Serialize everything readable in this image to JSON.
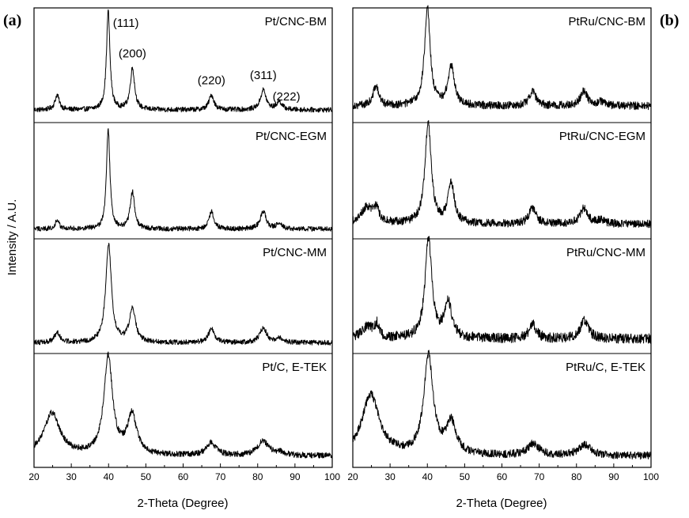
{
  "chart_data": [
    {
      "type": "line",
      "panel_label": "(a)",
      "xlabel": "2-Theta (Degree)",
      "ylabel": "Intensity / A.U.",
      "xlim": [
        20,
        100
      ],
      "xticks": [
        20,
        30,
        40,
        50,
        60,
        70,
        80,
        90,
        100
      ],
      "stacked_series": [
        {
          "name": "Pt/CNC-BM",
          "baseline": 0.08,
          "noise": 0.025,
          "peaks": [
            {
              "x": 26.2,
              "height": 0.15,
              "width": 0.7
            },
            {
              "x": 39.9,
              "height": 1.0,
              "width": 0.55
            },
            {
              "x": 46.4,
              "height": 0.42,
              "width": 0.7
            },
            {
              "x": 67.6,
              "height": 0.15,
              "width": 0.8
            },
            {
              "x": 81.5,
              "height": 0.2,
              "width": 0.9
            },
            {
              "x": 85.8,
              "height": 0.08,
              "width": 0.9
            }
          ],
          "annotations": [
            {
              "text": "(111)",
              "x": 39.9
            },
            {
              "text": "(200)",
              "x": 46.4
            },
            {
              "text": "(220)",
              "x": 67.6
            },
            {
              "text": "(311)",
              "x": 81.5
            },
            {
              "text": "(222)",
              "x": 85.8
            }
          ]
        },
        {
          "name": "Pt/CNC-EGM",
          "baseline": 0.05,
          "noise": 0.025,
          "peaks": [
            {
              "x": 26.2,
              "height": 0.08,
              "width": 0.7
            },
            {
              "x": 39.9,
              "height": 1.0,
              "width": 0.55
            },
            {
              "x": 46.4,
              "height": 0.37,
              "width": 0.7
            },
            {
              "x": 67.6,
              "height": 0.17,
              "width": 0.8
            },
            {
              "x": 81.5,
              "height": 0.18,
              "width": 0.9
            },
            {
              "x": 85.8,
              "height": 0.05,
              "width": 0.9
            }
          ]
        },
        {
          "name": "Pt/CNC-MM",
          "baseline": 0.06,
          "noise": 0.025,
          "peaks": [
            {
              "x": 26.2,
              "height": 0.1,
              "width": 0.9
            },
            {
              "x": 40.0,
              "height": 1.0,
              "width": 0.9
            },
            {
              "x": 46.4,
              "height": 0.34,
              "width": 1.0
            },
            {
              "x": 67.6,
              "height": 0.14,
              "width": 1.0
            },
            {
              "x": 81.5,
              "height": 0.15,
              "width": 1.1
            },
            {
              "x": 85.8,
              "height": 0.04,
              "width": 1.1
            }
          ]
        },
        {
          "name": "Pt/C, E-TEK",
          "baseline": 0.07,
          "noise": 0.03,
          "peaks": [
            {
              "x": 24.8,
              "height": 0.43,
              "width": 2.6
            },
            {
              "x": 39.9,
              "height": 1.0,
              "width": 1.4
            },
            {
              "x": 46.3,
              "height": 0.4,
              "width": 1.5
            },
            {
              "x": 67.5,
              "height": 0.13,
              "width": 1.5
            },
            {
              "x": 81.4,
              "height": 0.15,
              "width": 1.7
            },
            {
              "x": 85.8,
              "height": 0.03,
              "width": 1.6
            }
          ]
        }
      ]
    },
    {
      "type": "line",
      "panel_label": "(b)",
      "xlabel": "2-Theta (Degree)",
      "xlim": [
        20,
        100
      ],
      "xticks": [
        20,
        30,
        40,
        50,
        60,
        70,
        80,
        90,
        100
      ],
      "stacked_series": [
        {
          "name": "PtRu/CNC-BM",
          "baseline": 0.12,
          "noise": 0.04,
          "peaks": [
            {
              "x": 26.2,
              "height": 0.2,
              "width": 0.9
            },
            {
              "x": 40.0,
              "height": 1.0,
              "width": 0.9
            },
            {
              "x": 46.4,
              "height": 0.4,
              "width": 1.0
            },
            {
              "x": 68.2,
              "height": 0.16,
              "width": 1.0
            },
            {
              "x": 82.0,
              "height": 0.15,
              "width": 1.1
            },
            {
              "x": 86.5,
              "height": 0.04,
              "width": 1.1
            }
          ]
        },
        {
          "name": "PtRu/CNC-EGM",
          "baseline": 0.1,
          "noise": 0.04,
          "peaks": [
            {
              "x": 23.8,
              "height": 0.16,
              "width": 2.0
            },
            {
              "x": 26.3,
              "height": 0.13,
              "width": 0.8
            },
            {
              "x": 40.2,
              "height": 1.0,
              "width": 1.0
            },
            {
              "x": 46.4,
              "height": 0.4,
              "width": 1.0
            },
            {
              "x": 68.2,
              "height": 0.16,
              "width": 1.1
            },
            {
              "x": 82.0,
              "height": 0.16,
              "width": 1.2
            },
            {
              "x": 86.5,
              "height": 0.04,
              "width": 1.2
            }
          ]
        },
        {
          "name": "PtRu/CNC-MM",
          "baseline": 0.1,
          "noise": 0.05,
          "peaks": [
            {
              "x": 24.0,
              "height": 0.12,
              "width": 2.0
            },
            {
              "x": 26.4,
              "height": 0.12,
              "width": 0.6
            },
            {
              "x": 40.3,
              "height": 1.0,
              "width": 1.1
            },
            {
              "x": 45.6,
              "height": 0.35,
              "width": 1.2
            },
            {
              "x": 68.3,
              "height": 0.14,
              "width": 1.2
            },
            {
              "x": 82.1,
              "height": 0.18,
              "width": 1.3
            }
          ]
        },
        {
          "name": "PtRu/C, E-TEK",
          "baseline": 0.07,
          "noise": 0.04,
          "peaks": [
            {
              "x": 24.8,
              "height": 0.62,
              "width": 2.8
            },
            {
              "x": 40.3,
              "height": 1.0,
              "width": 1.5
            },
            {
              "x": 46.4,
              "height": 0.32,
              "width": 1.6
            },
            {
              "x": 68.4,
              "height": 0.12,
              "width": 1.8
            },
            {
              "x": 82.2,
              "height": 0.11,
              "width": 1.9
            }
          ]
        }
      ]
    }
  ]
}
